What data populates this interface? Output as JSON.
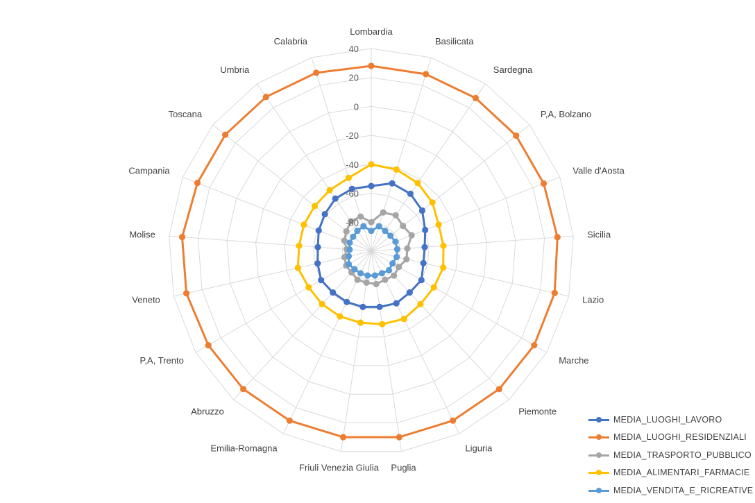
{
  "chart_data": {
    "type": "radar",
    "title": "",
    "categories": [
      "Lombardia",
      "Basilicata",
      "Sardegna",
      "P,A, Bolzano",
      "Valle d'Aosta",
      "Sicilia",
      "Lazio",
      "Marche",
      "Piemonte",
      "Liguria",
      "Puglia",
      "Friuli Venezia Giulia",
      "Emilia-Romagna",
      "Abruzzo",
      "P,A, Trento",
      "Veneto",
      "Molise",
      "Campania",
      "Toscana",
      "Umbria",
      "Calabria"
    ],
    "r_ticks": [
      40,
      20,
      0,
      -20,
      -40,
      -60,
      -80
    ],
    "r_range": [
      -100,
      40
    ],
    "grid": true,
    "legend_position": "bottom-right",
    "series": [
      {
        "name": "MEDIA_LUOGHI_LAVORO",
        "color": "#4472C4",
        "values": [
          -55,
          -51,
          -52,
          -55,
          -60,
          -63,
          -63,
          -60,
          -61,
          -60,
          -61,
          -61,
          -61,
          -61,
          -60,
          -62,
          -63,
          -61,
          -59,
          -56,
          -55
        ]
      },
      {
        "name": "MEDIA_LUOGHI_RESIDENZIALI",
        "color": "#ED7D31",
        "values": [
          28,
          28,
          28,
          28,
          28,
          29,
          30,
          30,
          30,
          30,
          30,
          30,
          30,
          30,
          30,
          31,
          31,
          29,
          29,
          29,
          29
        ]
      },
      {
        "name": "MEDIA_TRASPORTO_PUBBLICO",
        "color": "#A5A5A5",
        "values": [
          -80,
          -72,
          -70,
          -72,
          -70,
          -75,
          -75,
          -78,
          -77,
          -78,
          -77,
          -78,
          -78,
          -80,
          -80,
          -81,
          -83,
          -80,
          -78,
          -75,
          -75
        ]
      },
      {
        "name": "MEDIA_ALIMENTARI_FARMACIE",
        "color": "#FFC000",
        "values": [
          -40,
          -41,
          -43,
          -46,
          -50,
          -50,
          -49,
          -50,
          -50,
          -48,
          -49,
          -50,
          -50,
          -50,
          -50,
          -48,
          -50,
          -50,
          -50,
          -49,
          -47
        ]
      },
      {
        "name": "MEDIA_VENDITA_E_RICREATIVE",
        "color": "#5B9BD5",
        "values": [
          -86,
          -82,
          -83,
          -83,
          -82,
          -82,
          -82,
          -83,
          -82,
          -83,
          -83,
          -83,
          -83,
          -83,
          -82,
          -84,
          -85,
          -84,
          -84,
          -83,
          -82
        ]
      }
    ]
  }
}
